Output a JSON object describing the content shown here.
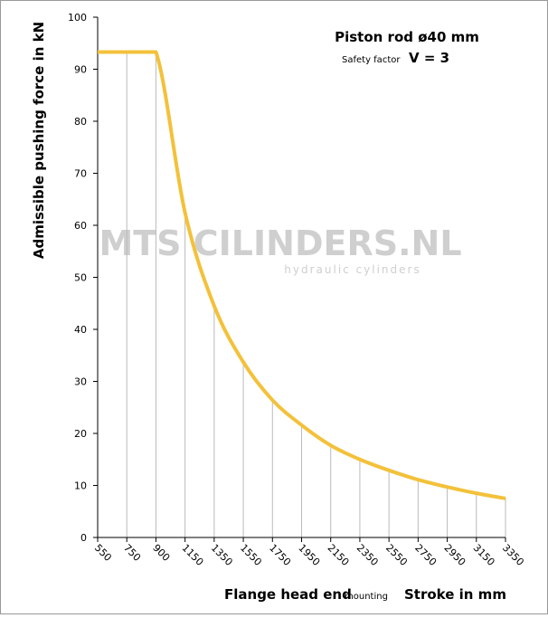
{
  "chart_data": {
    "type": "line",
    "title": "Piston rod ø40 mm",
    "subtitle_small": "Safety factor",
    "subtitle": "V = 3",
    "y_label": "Admissible pushing force in kN",
    "x_label": "Flange head end",
    "x_label_small": "mounting",
    "x_label_right": "Stroke in mm",
    "watermark": "MTS CILINDERS.NL",
    "watermark_sub": "hydraulic cylinders",
    "categories": [
      "550",
      "750",
      "900",
      "1150",
      "1350",
      "1550",
      "1750",
      "1950",
      "2150",
      "2350",
      "2550",
      "2750",
      "2950",
      "3150",
      "3350"
    ],
    "series": [
      {
        "name": "Admissible pushing force",
        "color": "#f3c13a",
        "values": [
          93.3,
          93.3,
          93.3,
          62.4,
          44.5,
          33.7,
          26.4,
          21.6,
          17.7,
          15.0,
          12.9,
          11.1,
          9.7,
          8.5,
          7.5
        ]
      }
    ],
    "ylim": [
      0,
      100
    ],
    "yticks": [
      0,
      10,
      20,
      30,
      40,
      50,
      60,
      70,
      80,
      90,
      100
    ],
    "grid": true
  }
}
